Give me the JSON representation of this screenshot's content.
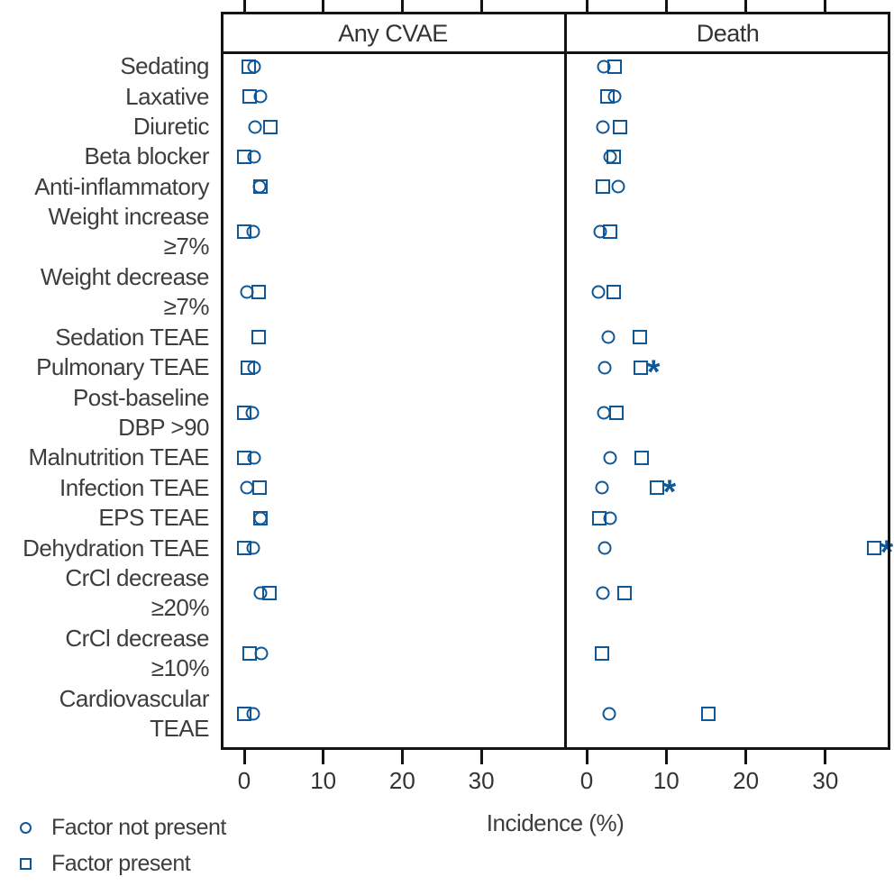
{
  "chart_data": {
    "type": "scatter",
    "title": "",
    "xlabel": "Incidence (%)",
    "marker_color": "#0f5796",
    "grid": false,
    "xticks": [
      0,
      10,
      20,
      30
    ],
    "xlim_per_panel": [
      -3,
      40
    ],
    "legend_position": "bottom-left",
    "legend": [
      {
        "marker": "circle",
        "label": "Factor not present"
      },
      {
        "marker": "square",
        "label": "Factor present"
      }
    ],
    "panels": [
      {
        "title": "Any CVAE",
        "key": "any_cvae"
      },
      {
        "title": "Death",
        "key": "death"
      }
    ],
    "significance_marker": "*",
    "rows": [
      {
        "label_lines": [
          "Sedating"
        ],
        "any_cvae": {
          "not_present": 1.2,
          "present": 0.6
        },
        "death": {
          "not_present": 2.2,
          "present": 3.5,
          "significant": false
        }
      },
      {
        "label_lines": [
          "Laxative"
        ],
        "any_cvae": {
          "not_present": 2.1,
          "present": 0.7
        },
        "death": {
          "not_present": 3.5,
          "present": 2.6,
          "significant": false
        }
      },
      {
        "label_lines": [
          "Diuretic"
        ],
        "any_cvae": {
          "not_present": 1.4,
          "present": 3.3
        },
        "death": {
          "not_present": 2.0,
          "present": 4.2,
          "significant": false
        }
      },
      {
        "label_lines": [
          "Beta blocker"
        ],
        "any_cvae": {
          "not_present": 1.3,
          "present": 0.0
        },
        "death": {
          "not_present": 3.0,
          "present": 3.4,
          "significant": false
        }
      },
      {
        "label_lines": [
          "Anti-inflammatory"
        ],
        "any_cvae": {
          "not_present": 1.9,
          "present": 2.0
        },
        "death": {
          "not_present": 4.0,
          "present": 2.0,
          "significant": false
        }
      },
      {
        "label_lines": [
          "Weight increase",
          "≥7%"
        ],
        "any_cvae": {
          "not_present": 1.1,
          "present": 0.0
        },
        "death": {
          "not_present": 1.7,
          "present": 2.9,
          "significant": false
        }
      },
      {
        "label_lines": [
          "Weight decrease",
          "≥7%"
        ],
        "any_cvae": {
          "not_present": 0.3,
          "present": 1.8
        },
        "death": {
          "not_present": 1.5,
          "present": 3.4,
          "significant": false
        }
      },
      {
        "label_lines": [
          "Sedation TEAE"
        ],
        "any_cvae": {
          "not_present": null,
          "present": 1.8
        },
        "death": {
          "not_present": 2.7,
          "present": 6.7,
          "significant": false
        }
      },
      {
        "label_lines": [
          "Pulmonary TEAE"
        ],
        "any_cvae": {
          "not_present": 1.3,
          "present": 0.5
        },
        "death": {
          "not_present": 2.3,
          "present": 6.8,
          "significant": true
        }
      },
      {
        "label_lines": [
          "Post-baseline",
          "DBP >90"
        ],
        "any_cvae": {
          "not_present": 1.0,
          "present": 0.0
        },
        "death": {
          "not_present": 2.2,
          "present": 3.7,
          "significant": false
        }
      },
      {
        "label_lines": [
          "Malnutrition TEAE"
        ],
        "any_cvae": {
          "not_present": 1.2,
          "present": 0.0
        },
        "death": {
          "not_present": 2.9,
          "present": 6.9,
          "significant": false
        }
      },
      {
        "label_lines": [
          "Infection TEAE"
        ],
        "any_cvae": {
          "not_present": 0.3,
          "present": 1.9
        },
        "death": {
          "not_present": 1.9,
          "present": 8.8,
          "significant": true
        }
      },
      {
        "label_lines": [
          "EPS TEAE"
        ],
        "any_cvae": {
          "not_present": 2.0,
          "present": 2.1
        },
        "death": {
          "not_present": 3.0,
          "present": 1.6,
          "significant": false
        }
      },
      {
        "label_lines": [
          "Dehydration TEAE"
        ],
        "any_cvae": {
          "not_present": 1.1,
          "present": 0.0
        },
        "death": {
          "not_present": 2.3,
          "present": 36.1,
          "significant": true
        }
      },
      {
        "label_lines": [
          "CrCl decrease",
          "≥20%"
        ],
        "any_cvae": {
          "not_present": 2.0,
          "present": 3.2
        },
        "death": {
          "not_present": 2.0,
          "present": 4.7,
          "significant": false
        }
      },
      {
        "label_lines": [
          "CrCl decrease",
          "≥10%"
        ],
        "any_cvae": {
          "not_present": 2.2,
          "present": 0.7
        },
        "death": {
          "not_present": null,
          "present": 1.9,
          "significant": false
        }
      },
      {
        "label_lines": [
          "Cardiovascular",
          "TEAE"
        ],
        "any_cvae": {
          "not_present": 1.1,
          "present": 0.0
        },
        "death": {
          "not_present": 2.8,
          "present": 15.3,
          "significant": false
        }
      }
    ]
  }
}
